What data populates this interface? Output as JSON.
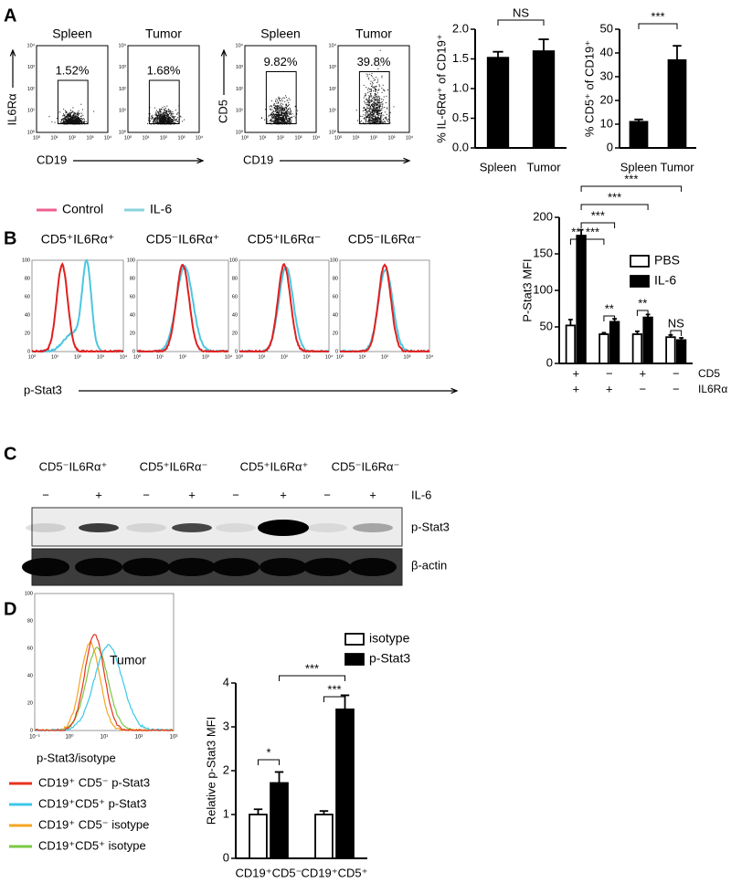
{
  "panel_labels": [
    "A",
    "B",
    "C",
    "D"
  ],
  "log_ticks": [
    "10⁰",
    "10¹",
    "10²",
    "10³",
    "10⁴"
  ],
  "panel_a": {
    "flow_plots": [
      {
        "title": "Spleen",
        "gate": "1.52%"
      },
      {
        "title": "Tumor",
        "gate": "1.68%"
      },
      {
        "title": "Spleen",
        "gate": "9.82%"
      },
      {
        "title": "Tumor",
        "gate": "39.8%"
      }
    ],
    "y_labels": [
      "IL6Rα",
      "CD5"
    ],
    "x_label": "CD19"
  },
  "panel_b": {
    "legend": [
      {
        "name": "Control",
        "color": "#ef5f8f"
      },
      {
        "name": "IL-6",
        "color": "#8ad3dd"
      }
    ],
    "histograms": [
      "CD5⁺IL6Rα⁺",
      "CD5⁻IL6Rα⁺",
      "CD5⁺IL6Rα⁻",
      "CD5⁻IL6Rα⁻"
    ],
    "curve_colors": [
      "#e0201e",
      "#4cc6e0"
    ],
    "hist_yticks": [
      0,
      20,
      40,
      60,
      80,
      100
    ],
    "x_label": "p-Stat3"
  },
  "panel_c": {
    "groups": [
      "CD5⁻IL6Rα⁺",
      "CD5⁺IL6Rα⁻",
      "CD5⁺IL6Rα⁺",
      "CD5⁻IL6Rα⁻"
    ],
    "treatment_signs": [
      "−",
      "+"
    ],
    "treatment": "IL-6",
    "rows": [
      "p-Stat3",
      "β-actin"
    ]
  },
  "panel_d": {
    "hist_label": "Tumor",
    "x_label": "p-Stat3/isotype",
    "xticks": [
      "10⁻¹",
      "10⁰",
      "10¹",
      "10²",
      "10³"
    ],
    "legend": [
      {
        "name": "CD19⁺ CD5⁻ p-Stat3",
        "color": "#e8321e"
      },
      {
        "name": "CD19⁺CD5⁺ p-Stat3",
        "color": "#3cc8e8"
      },
      {
        "name": "CD19⁺ CD5⁻ isotype",
        "color": "#f5a623"
      },
      {
        "name": "CD19⁺CD5⁺  isotype",
        "color": "#7ac943"
      }
    ]
  },
  "chart_data": [
    {
      "type": "bar",
      "y_label": "% IL-6Rα⁺ of CD19⁺",
      "categories": [
        "Spleen",
        "Tumor"
      ],
      "series": [
        {
          "color": "#000000",
          "values": [
            1.52,
            1.63
          ],
          "errors": [
            0.1,
            0.2
          ]
        }
      ],
      "ylim": [
        0,
        2.0
      ],
      "yticks": [
        {
          "value": 0,
          "label": "0.0"
        },
        0.5,
        {
          "value": 1,
          "label": "1.0"
        },
        1.5,
        {
          "value": 2,
          "label": "2.0"
        }
      ],
      "annotations": [
        "NS"
      ]
    },
    {
      "type": "bar",
      "y_label": "% CD5⁺ of CD19⁺",
      "categories": [
        "Spleen",
        "Tumor"
      ],
      "series": [
        {
          "color": "#000000",
          "values": [
            11,
            37
          ],
          "errors": [
            1,
            6
          ]
        }
      ],
      "ylim": [
        0,
        50
      ],
      "yticks": [
        0,
        10,
        20,
        30,
        40,
        50
      ],
      "annotations": [
        "***"
      ]
    },
    {
      "type": "bar",
      "y_label": "P-Stat3 MFI",
      "categories": [
        "+",
        "−",
        "+",
        "−"
      ],
      "categories_2": [
        "+",
        "+",
        "−",
        "−"
      ],
      "category_names": [
        "CD5",
        "IL6Rα"
      ],
      "series": [
        {
          "name": "PBS",
          "color": "#ffffff",
          "values": [
            52,
            40,
            40,
            36
          ],
          "errors": [
            8,
            2,
            4,
            3
          ]
        },
        {
          "name": "IL-6",
          "color": "#000000",
          "values": [
            175,
            57,
            63,
            32
          ],
          "errors": [
            8,
            4,
            4,
            3
          ]
        }
      ],
      "ylim": [
        0,
        200
      ],
      "yticks": [
        0,
        50,
        100,
        150,
        200
      ],
      "annotations": [
        "**",
        "***",
        "**",
        "**",
        "NS",
        "***",
        "***",
        "***"
      ]
    },
    {
      "type": "bar",
      "y_label": "Relative p-Stat3 MFI",
      "categories": [
        "CD19⁺CD5⁻",
        "CD19⁺CD5⁺"
      ],
      "series": [
        {
          "name": "isotype",
          "color": "#ffffff",
          "values": [
            1.0,
            1.0
          ],
          "errors": [
            0.12,
            0.08
          ]
        },
        {
          "name": "p-Stat3",
          "color": "#000000",
          "values": [
            1.72,
            3.4
          ],
          "errors": [
            0.25,
            0.32
          ]
        }
      ],
      "ylim": [
        0,
        4
      ],
      "yticks": [
        0,
        1,
        2,
        3,
        4
      ],
      "annotations": [
        "*",
        "***",
        "***"
      ]
    }
  ]
}
